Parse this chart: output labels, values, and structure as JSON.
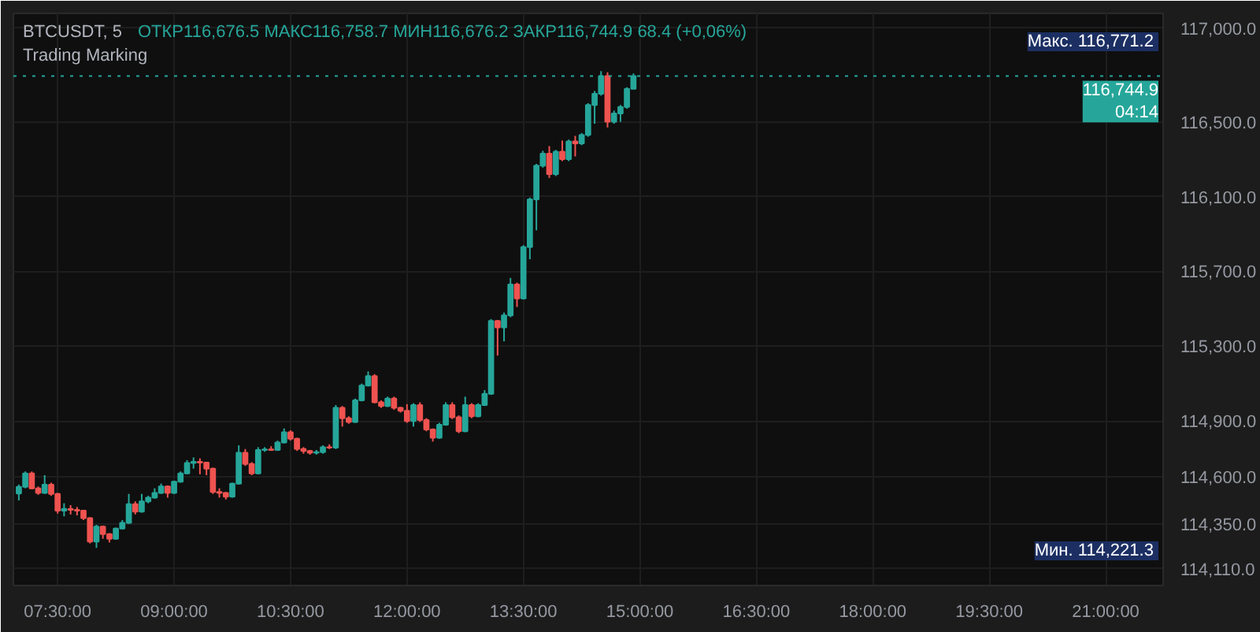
{
  "chart_data": {
    "type": "candlestick",
    "title": "BTCUSDT, 5",
    "subtitle": "Trading Marking",
    "annotations": [
      "ОТКР116,676.5  МАКС116,758.7  МИН116,676.2  ЗАКР116,744.9  68.4 (+0,06%)",
      "Макс.  116,771.2",
      "Мин.  114,221.3"
    ],
    "x": [
      7,
      7.083,
      7.167,
      7.25,
      7.333,
      7.417,
      7.5,
      7.583,
      7.667,
      7.75,
      7.833,
      7.917,
      8,
      8.083,
      8.167,
      8.25,
      8.333,
      8.417,
      8.5,
      8.583,
      8.667,
      8.75,
      8.833,
      8.917,
      9,
      9.083,
      9.167,
      9.25,
      9.333,
      9.417,
      9.5,
      9.583,
      9.667,
      9.75,
      9.833,
      9.917,
      10,
      10.083,
      10.167,
      10.25,
      10.333,
      10.417,
      10.5,
      10.583,
      10.667,
      10.75,
      10.833,
      10.917,
      11,
      11.083,
      11.167,
      11.25,
      11.333,
      11.417,
      11.5,
      11.583,
      11.667,
      11.75,
      11.833,
      11.917,
      12,
      12.083,
      12.167,
      12.25,
      12.333,
      12.417,
      12.5,
      12.583,
      12.667,
      12.75,
      12.833,
      12.917,
      13,
      13.083,
      13.167,
      13.25,
      13.333,
      13.417,
      13.5,
      13.583,
      13.667,
      13.75,
      13.833,
      13.917,
      14,
      14.083,
      14.167,
      14.25,
      14.333,
      14.417,
      14.5,
      14.583,
      14.667,
      14.75,
      14.833,
      14.917
    ],
    "ohlc": [
      [
        114512,
        114560,
        114475,
        114548
      ],
      [
        114548,
        114630,
        114540,
        114620
      ],
      [
        114620,
        114630,
        114535,
        114540
      ],
      [
        114540,
        114550,
        114505,
        114515
      ],
      [
        114515,
        114610,
        114510,
        114560
      ],
      [
        114560,
        114570,
        114500,
        114510
      ],
      [
        114510,
        114515,
        114405,
        114420
      ],
      [
        114420,
        114460,
        114390,
        114430
      ],
      [
        114430,
        114450,
        114400,
        114425
      ],
      [
        114425,
        114440,
        114395,
        114420
      ],
      [
        114420,
        114425,
        114370,
        114380
      ],
      [
        114380,
        114385,
        114245,
        114255
      ],
      [
        114255,
        114345,
        114221.3,
        114335
      ],
      [
        114335,
        114340,
        114270,
        114295
      ],
      [
        114295,
        114300,
        114250,
        114270
      ],
      [
        114270,
        114330,
        114265,
        114325
      ],
      [
        114325,
        114370,
        114320,
        114355
      ],
      [
        114355,
        114510,
        114350,
        114455
      ],
      [
        114455,
        114470,
        114400,
        114415
      ],
      [
        114415,
        114510,
        114410,
        114470
      ],
      [
        114470,
        114500,
        114460,
        114490
      ],
      [
        114490,
        114540,
        114485,
        114515
      ],
      [
        114515,
        114565,
        114510,
        114550
      ],
      [
        114550,
        114555,
        114490,
        114515
      ],
      [
        114515,
        114580,
        114510,
        114575
      ],
      [
        114575,
        114630,
        114570,
        114620
      ],
      [
        114620,
        114690,
        114615,
        114675
      ],
      [
        114675,
        114705,
        114645,
        114682
      ],
      [
        114682,
        114700,
        114615,
        114677
      ],
      [
        114677,
        114680,
        114610,
        114645
      ],
      [
        114645,
        114650,
        114510,
        114520
      ],
      [
        114520,
        114540,
        114490,
        114515
      ],
      [
        114515,
        114520,
        114480,
        114495
      ],
      [
        114495,
        114570,
        114490,
        114565
      ],
      [
        114565,
        114770,
        114560,
        114730
      ],
      [
        114730,
        114750,
        114660,
        114670
      ],
      [
        114670,
        114680,
        114610,
        114620
      ],
      [
        114620,
        114760,
        114615,
        114745
      ],
      [
        114745,
        114760,
        114735,
        114748
      ],
      [
        114748,
        114765,
        114740,
        114745
      ],
      [
        114745,
        114795,
        114740,
        114785
      ],
      [
        114785,
        114860,
        114780,
        114840
      ],
      [
        114840,
        114850,
        114795,
        114805
      ],
      [
        114805,
        114810,
        114740,
        114750
      ],
      [
        114750,
        114760,
        114725,
        114740
      ],
      [
        114740,
        114745,
        114720,
        114730
      ],
      [
        114730,
        114745,
        114720,
        114733
      ],
      [
        114733,
        114770,
        114725,
        114760
      ],
      [
        114760,
        114775,
        114750,
        114758
      ],
      [
        114758,
        114985,
        114750,
        114970
      ],
      [
        114970,
        114980,
        114870,
        114915
      ],
      [
        114915,
        114925,
        114885,
        114895
      ],
      [
        114895,
        115020,
        114890,
        115010
      ],
      [
        115010,
        115100,
        115005,
        115090
      ],
      [
        115090,
        115165,
        115085,
        115140
      ],
      [
        115140,
        115150,
        114995,
        115000
      ],
      [
        115000,
        115010,
        114970,
        114980
      ],
      [
        114980,
        115030,
        114975,
        115020
      ],
      [
        115020,
        115030,
        114960,
        114970
      ],
      [
        114970,
        114975,
        114945,
        114955
      ],
      [
        114955,
        114990,
        114890,
        114900
      ],
      [
        114900,
        114995,
        114870,
        114985
      ],
      [
        114985,
        115000,
        114895,
        114905
      ],
      [
        114905,
        114915,
        114845,
        114855
      ],
      [
        114855,
        114860,
        114790,
        114810
      ],
      [
        114810,
        114890,
        114805,
        114880
      ],
      [
        114880,
        115000,
        114875,
        114985
      ],
      [
        114985,
        115000,
        114910,
        114920
      ],
      [
        114920,
        114930,
        114835,
        114845
      ],
      [
        114845,
        115030,
        114840,
        114985
      ],
      [
        114985,
        114995,
        114915,
        114925
      ],
      [
        114925,
        114995,
        114920,
        114985
      ],
      [
        114985,
        115065,
        114980,
        115045
      ],
      [
        115045,
        115445,
        115040,
        115435
      ],
      [
        115435,
        115440,
        115250,
        115400
      ],
      [
        115400,
        115480,
        115326,
        115465
      ],
      [
        115465,
        115665,
        115455,
        115630
      ],
      [
        115630,
        115640,
        115510,
        115555
      ],
      [
        115555,
        115840,
        115550,
        115830
      ],
      [
        115830,
        116095,
        115765,
        116085
      ],
      [
        116085,
        116275,
        115920,
        116265
      ],
      [
        116265,
        116345,
        116255,
        116330
      ],
      [
        116330,
        116370,
        116200,
        116220
      ],
      [
        116220,
        116350,
        116210,
        116340
      ],
      [
        116340,
        116400,
        116290,
        116300
      ],
      [
        116300,
        116405,
        116290,
        116395
      ],
      [
        116395,
        116425,
        116315,
        116385
      ],
      [
        116385,
        116440,
        116375,
        116430
      ],
      [
        116430,
        116600,
        116420,
        116590
      ],
      [
        116590,
        116665,
        116490,
        116650
      ],
      [
        116650,
        116771.2,
        116640,
        116745
      ],
      [
        116745,
        116765,
        116470,
        116500
      ],
      [
        116500,
        116560,
        116490,
        116545
      ],
      [
        116545,
        116590,
        116500,
        116580
      ],
      [
        116580,
        116685,
        116570,
        116676.5
      ],
      [
        116676.5,
        116758.7,
        116676.2,
        116744.9
      ]
    ],
    "colors": [
      "#26a69a",
      "#26a69a",
      "#ef5350",
      "#ef5350",
      "#26a69a",
      "#ef5350",
      "#ef5350",
      "#26a69a",
      "#ef5350",
      "#ef5350",
      "#ef5350",
      "#ef5350",
      "#26a69a",
      "#ef5350",
      "#ef5350",
      "#26a69a",
      "#26a69a",
      "#26a69a",
      "#ef5350",
      "#26a69a",
      "#26a69a",
      "#26a69a",
      "#26a69a",
      "#ef5350",
      "#26a69a",
      "#26a69a",
      "#26a69a",
      "#26a69a",
      "#ef5350",
      "#ef5350",
      "#ef5350",
      "#ef5350",
      "#ef5350",
      "#26a69a",
      "#26a69a",
      "#ef5350",
      "#ef5350",
      "#26a69a",
      "#26a69a",
      "#ef5350",
      "#26a69a",
      "#26a69a",
      "#ef5350",
      "#ef5350",
      "#ef5350",
      "#ef5350",
      "#26a69a",
      "#26a69a",
      "#ef5350",
      "#26a69a",
      "#ef5350",
      "#ef5350",
      "#26a69a",
      "#26a69a",
      "#26a69a",
      "#ef5350",
      "#ef5350",
      "#26a69a",
      "#ef5350",
      "#ef5350",
      "#ef5350",
      "#26a69a",
      "#ef5350",
      "#ef5350",
      "#ef5350",
      "#26a69a",
      "#26a69a",
      "#ef5350",
      "#ef5350",
      "#26a69a",
      "#ef5350",
      "#26a69a",
      "#26a69a",
      "#26a69a",
      "#ef5350",
      "#26a69a",
      "#26a69a",
      "#ef5350",
      "#26a69a",
      "#26a69a",
      "#26a69a",
      "#26a69a",
      "#ef5350",
      "#26a69a",
      "#ef5350",
      "#26a69a",
      "#ef5350",
      "#26a69a",
      "#26a69a",
      "#26a69a",
      "#26a69a",
      "#ef5350",
      "#26a69a",
      "#26a69a",
      "#26a69a",
      "#26a69a"
    ],
    "xlim": [
      6.93,
      21.74
    ],
    "xticks": [
      {
        "value": 7.5,
        "label": "07:30:00"
      },
      {
        "value": 9,
        "label": "09:00:00"
      },
      {
        "value": 10.5,
        "label": "10:30:00"
      },
      {
        "value": 12,
        "label": "12:00:00"
      },
      {
        "value": 13.5,
        "label": "13:30:00"
      },
      {
        "value": 15,
        "label": "15:00:00"
      },
      {
        "value": 16.5,
        "label": "16:30:00"
      },
      {
        "value": 18,
        "label": "18:00:00"
      },
      {
        "value": 19.5,
        "label": "19:30:00"
      },
      {
        "value": 21,
        "label": "21:00:00"
      }
    ],
    "ylim": [
      114020,
      117080
    ],
    "yticks": [
      {
        "value": 114110,
        "label": "114,110.0"
      },
      {
        "value": 114350,
        "label": "114,350.0"
      },
      {
        "value": 114600,
        "label": "114,600.0"
      },
      {
        "value": 114900,
        "label": "114,900.0"
      },
      {
        "value": 115300,
        "label": "115,300.0"
      },
      {
        "value": 115700,
        "label": "115,700.0"
      },
      {
        "value": 116100,
        "label": "116,100.0"
      },
      {
        "value": 116500,
        "label": "116,500.0"
      },
      {
        "value": 117000,
        "label": "117,000.0"
      }
    ],
    "grid": true,
    "ref_lines": [
      {
        "axis": "y",
        "value": 116744.9,
        "label": "116,744.9\n04:14",
        "color": "#26a69a",
        "line_style": "dotted"
      }
    ]
  }
}
